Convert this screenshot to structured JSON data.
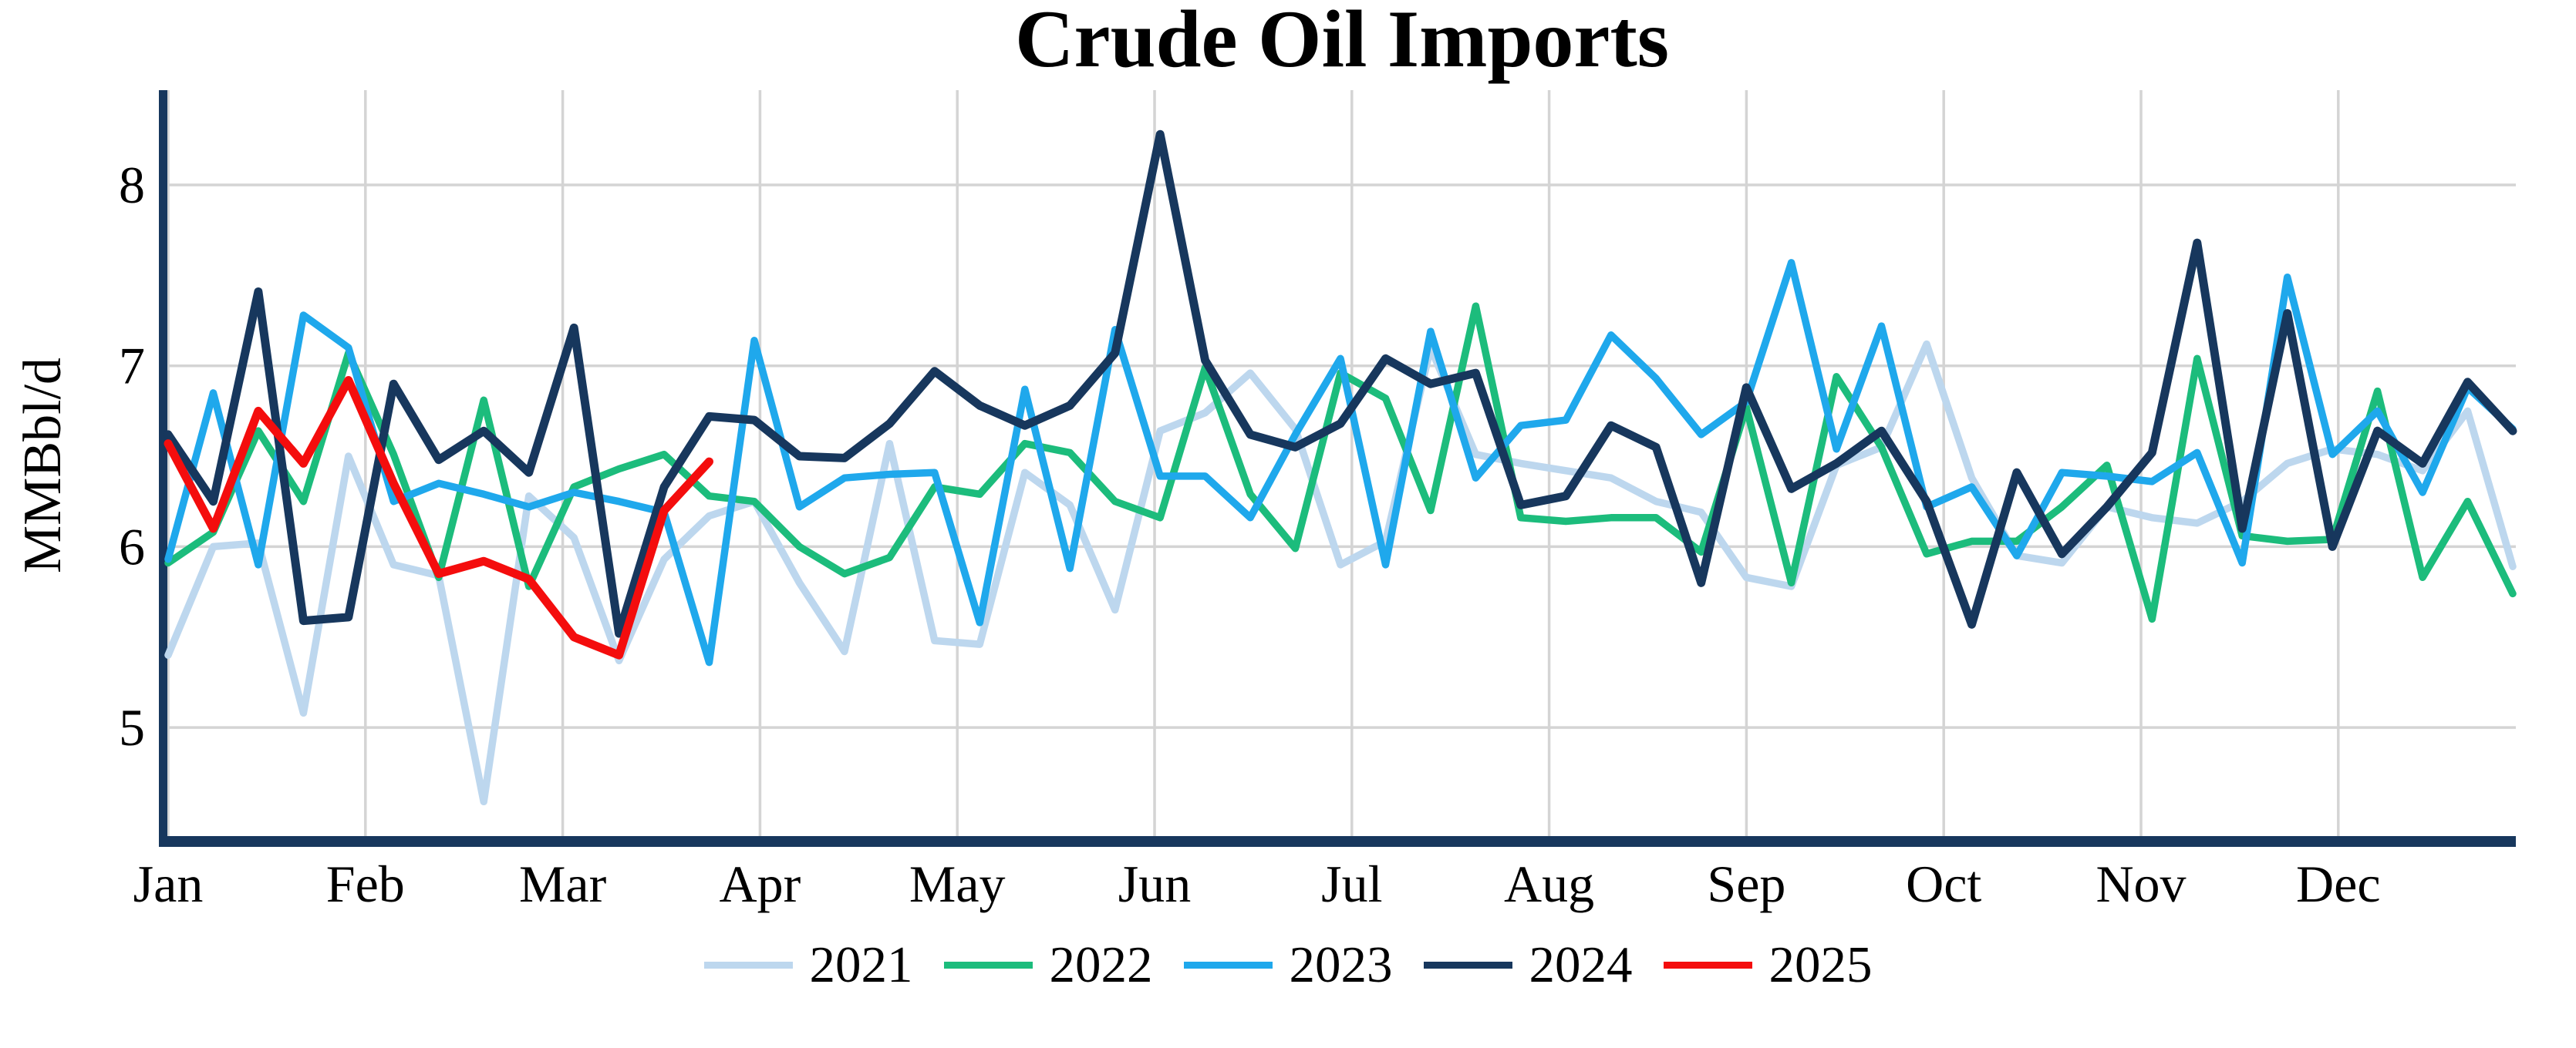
{
  "page": {
    "background": "#FFFFFF"
  },
  "chart_data": {
    "type": "line",
    "title": "Crude Oil Imports",
    "ylabel": "MMBbl/d",
    "xlabel": "",
    "months": [
      "Jan",
      "Feb",
      "Mar",
      "Apr",
      "May",
      "Jun",
      "Jul",
      "Aug",
      "Sep",
      "Oct",
      "Nov",
      "Dec"
    ],
    "yticks": [
      5,
      6,
      7,
      8
    ],
    "ylim": [
      4.37,
      8.52
    ],
    "grid": true,
    "legend_position": "bottom",
    "weeks_per_year": 53,
    "axis_color": "#17375D",
    "gridline_color": "#D4D4D4",
    "series": [
      {
        "name": "2021",
        "color": "#BDD7EE",
        "values": [
          5.4,
          6.0,
          6.02,
          5.08,
          6.5,
          5.9,
          5.84,
          4.59,
          6.28,
          6.05,
          5.37,
          5.93,
          6.17,
          6.25,
          5.8,
          5.42,
          6.57,
          5.48,
          5.46,
          6.41,
          6.23,
          5.65,
          6.64,
          6.74,
          6.96,
          6.65,
          5.9,
          6.03,
          7.1,
          6.51,
          6.46,
          6.42,
          6.38,
          6.25,
          6.19,
          5.83,
          5.78,
          6.45,
          6.55,
          7.12,
          6.38,
          5.95,
          5.91,
          6.22,
          6.16,
          6.13,
          6.25,
          6.46,
          6.54,
          6.51,
          6.42,
          6.75,
          5.89
        ]
      },
      {
        "name": "2022",
        "color": "#1CBC7C",
        "values": [
          5.91,
          6.08,
          6.64,
          6.25,
          7.07,
          6.51,
          5.83,
          6.81,
          5.78,
          6.33,
          6.43,
          6.51,
          6.28,
          6.25,
          6.0,
          5.85,
          5.94,
          6.33,
          6.29,
          6.57,
          6.52,
          6.25,
          6.16,
          6.99,
          6.29,
          5.99,
          6.96,
          6.82,
          6.2,
          7.33,
          6.16,
          6.14,
          6.16,
          6.16,
          5.97,
          6.77,
          5.8,
          6.94,
          6.55,
          5.96,
          6.03,
          6.03,
          6.22,
          6.45,
          5.6,
          7.04,
          6.06,
          6.03,
          6.04,
          6.86,
          5.83,
          6.25,
          5.74
        ]
      },
      {
        "name": "2023",
        "color": "#1FA8EC",
        "values": [
          5.93,
          6.85,
          5.9,
          7.28,
          7.1,
          6.25,
          6.35,
          6.29,
          6.22,
          6.3,
          6.25,
          6.19,
          5.36,
          7.14,
          6.22,
          6.38,
          6.4,
          6.41,
          5.58,
          6.87,
          5.88,
          7.2,
          6.39,
          6.39,
          6.16,
          6.62,
          7.04,
          5.9,
          7.19,
          6.38,
          6.67,
          6.7,
          7.17,
          6.93,
          6.62,
          6.8,
          7.57,
          6.54,
          7.22,
          6.22,
          6.33,
          5.95,
          6.41,
          6.39,
          6.36,
          6.52,
          5.91,
          7.49,
          6.51,
          6.75,
          6.3,
          6.88,
          6.65
        ]
      },
      {
        "name": "2024",
        "color": "#17375D",
        "values": [
          6.62,
          6.25,
          7.41,
          5.59,
          5.61,
          6.9,
          6.48,
          6.64,
          6.41,
          7.21,
          5.52,
          6.33,
          6.72,
          6.7,
          6.5,
          6.49,
          6.68,
          6.97,
          6.78,
          6.67,
          6.78,
          7.07,
          8.28,
          7.03,
          6.62,
          6.55,
          6.68,
          7.04,
          6.9,
          6.96,
          6.23,
          6.28,
          6.67,
          6.55,
          5.8,
          6.88,
          6.32,
          6.46,
          6.64,
          6.25,
          5.57,
          6.41,
          5.96,
          6.22,
          6.52,
          7.68,
          6.1,
          7.29,
          6.0,
          6.64,
          6.46,
          6.91,
          6.64
        ]
      },
      {
        "name": "2025",
        "color": "#F40D0D",
        "values": [
          6.57,
          6.1,
          6.75,
          6.46,
          6.92,
          6.35,
          5.85,
          5.92,
          5.82,
          5.5,
          5.4,
          6.2,
          6.47
        ]
      }
    ]
  }
}
